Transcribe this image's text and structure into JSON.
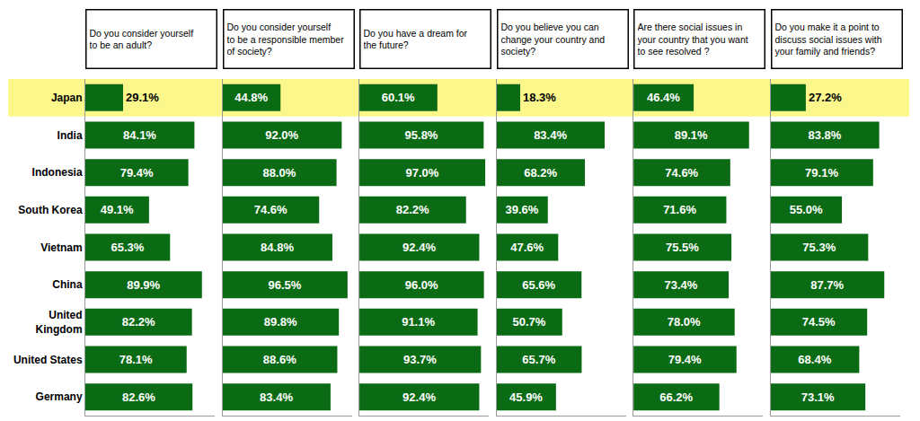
{
  "chart_data": [
    {
      "type": "bar",
      "orientation": "horizontal",
      "title": "Do you consider yourself to be an adult?",
      "categories": [
        "Japan",
        "India",
        "Indonesia",
        "South Korea",
        "Vietnam",
        "China",
        "United Kingdom",
        "United States",
        "Germany"
      ],
      "values": [
        29.1,
        84.1,
        79.4,
        49.1,
        65.3,
        89.9,
        82.2,
        78.1,
        82.6
      ],
      "value_labels": [
        "29.1%",
        "84.1%",
        "79.4%",
        "49.1%",
        "65.3%",
        "89.9%",
        "82.2%",
        "78.1%",
        "82.6%"
      ],
      "color": "#0b6b14",
      "xlim": [
        0,
        100
      ],
      "grid": false,
      "data_labels": true,
      "tick_labels": "y"
    },
    {
      "type": "bar",
      "orientation": "horizontal",
      "title": "Do you consider yourself to be a responsible member of society?",
      "categories": [
        "Japan",
        "India",
        "Indonesia",
        "South Korea",
        "Vietnam",
        "China",
        "United Kingdom",
        "United States",
        "Germany"
      ],
      "values": [
        44.8,
        92.0,
        88.0,
        74.6,
        84.8,
        96.5,
        89.8,
        88.6,
        83.4
      ],
      "value_labels": [
        "44.8%",
        "92.0%",
        "88.0%",
        "74.6%",
        "84.8%",
        "96.5%",
        "89.8%",
        "88.6%",
        "83.4%"
      ],
      "color": "#0b6b14",
      "xlim": [
        0,
        100
      ],
      "grid": false,
      "data_labels": true,
      "tick_labels": false
    },
    {
      "type": "bar",
      "orientation": "horizontal",
      "title": "Do you have a dream for the future?",
      "categories": [
        "Japan",
        "India",
        "Indonesia",
        "South Korea",
        "Vietnam",
        "China",
        "United Kingdom",
        "United States",
        "Germany"
      ],
      "values": [
        60.1,
        95.8,
        97.0,
        82.2,
        92.4,
        96.0,
        91.1,
        93.7,
        92.4
      ],
      "value_labels": [
        "60.1%",
        "95.8%",
        "97.0%",
        "82.2%",
        "92.4%",
        "96.0%",
        "91.1%",
        "93.7%",
        "92.4%"
      ],
      "color": "#0b6b14",
      "xlim": [
        0,
        100
      ],
      "grid": false,
      "data_labels": true,
      "tick_labels": false
    },
    {
      "type": "bar",
      "orientation": "horizontal",
      "title": "Do you believe you can change your country and society?",
      "categories": [
        "Japan",
        "India",
        "Indonesia",
        "South Korea",
        "Vietnam",
        "China",
        "United Kingdom",
        "United States",
        "Germany"
      ],
      "values": [
        18.3,
        83.4,
        68.2,
        39.6,
        47.6,
        65.6,
        50.7,
        65.7,
        45.9
      ],
      "value_labels": [
        "18.3%",
        "83.4%",
        "68.2%",
        "39.6%",
        "47.6%",
        "65.6%",
        "50.7%",
        "65.7%",
        "45.9%"
      ],
      "color": "#0b6b14",
      "xlim": [
        0,
        100
      ],
      "grid": false,
      "data_labels": true,
      "tick_labels": false
    },
    {
      "type": "bar",
      "orientation": "horizontal",
      "title": "Are there social issues in your country that you want to see resolved ?",
      "categories": [
        "Japan",
        "India",
        "Indonesia",
        "South Korea",
        "Vietnam",
        "China",
        "United Kingdom",
        "United States",
        "Germany"
      ],
      "values": [
        46.4,
        89.1,
        74.6,
        71.6,
        75.5,
        73.4,
        78.0,
        79.4,
        66.2
      ],
      "value_labels": [
        "46.4%",
        "89.1%",
        "74.6%",
        "71.6%",
        "75.5%",
        "73.4%",
        "78.0%",
        "79.4%",
        "66.2%"
      ],
      "color": "#0b6b14",
      "xlim": [
        0,
        100
      ],
      "grid": false,
      "data_labels": true,
      "tick_labels": false
    },
    {
      "type": "bar",
      "orientation": "horizontal",
      "title": "Do you make it a point to discuss social issues with your family and friends?",
      "categories": [
        "Japan",
        "India",
        "Indonesia",
        "South Korea",
        "Vietnam",
        "China",
        "United Kingdom",
        "United States",
        "Germany"
      ],
      "values": [
        27.2,
        83.8,
        79.1,
        55.0,
        75.3,
        87.7,
        74.5,
        68.4,
        73.1
      ],
      "value_labels": [
        "27.2%",
        "83.8%",
        "79.1%",
        "55.0%",
        "75.3%",
        "87.7%",
        "74.5%",
        "68.4%",
        "73.1%"
      ],
      "color": "#0b6b14",
      "xlim": [
        0,
        100
      ],
      "grid": false,
      "data_labels": true,
      "tick_labels": false
    }
  ]
}
